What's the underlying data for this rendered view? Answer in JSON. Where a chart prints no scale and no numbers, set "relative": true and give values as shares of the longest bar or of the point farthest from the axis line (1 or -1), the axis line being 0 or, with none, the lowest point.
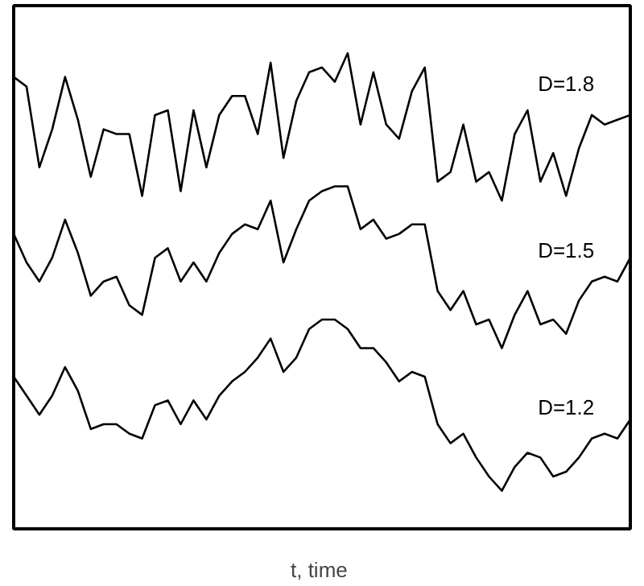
{
  "chart_data": {
    "type": "line",
    "xlabel": "t,  time",
    "relative": true,
    "categories": [
      null,
      null,
      null,
      null,
      null,
      null,
      null,
      null,
      null,
      null,
      null,
      null,
      null,
      null,
      null,
      null,
      null,
      null,
      null,
      null,
      null,
      null,
      null,
      null,
      null,
      null,
      null,
      null,
      null,
      null,
      null,
      null,
      null,
      null,
      null,
      null,
      null,
      null,
      null,
      null,
      null,
      null,
      null,
      null,
      null,
      null,
      null,
      null,
      null
    ],
    "series": [
      {
        "name": "D=1.8",
        "color": "#000000",
        "values": [
          0.95,
          0.93,
          0.76,
          0.84,
          0.95,
          0.86,
          0.74,
          0.84,
          0.83,
          0.83,
          0.7,
          0.87,
          0.88,
          0.71,
          0.88,
          0.76,
          0.87,
          0.91,
          0.91,
          0.83,
          0.98,
          0.78,
          0.9,
          0.96,
          0.97,
          0.94,
          1.0,
          0.85,
          0.96,
          0.85,
          0.82,
          0.92,
          0.97,
          0.73,
          0.75,
          0.85,
          0.73,
          0.75,
          0.69,
          0.83,
          0.88,
          0.73,
          0.79,
          0.7,
          0.8,
          0.87,
          0.85,
          0.86,
          0.87
        ]
      },
      {
        "name": "D=1.5",
        "color": "#000000",
        "values": [
          0.62,
          0.56,
          0.52,
          0.57,
          0.65,
          0.58,
          0.49,
          0.52,
          0.53,
          0.47,
          0.45,
          0.57,
          0.59,
          0.52,
          0.56,
          0.52,
          0.58,
          0.62,
          0.64,
          0.63,
          0.69,
          0.56,
          0.63,
          0.69,
          0.71,
          0.72,
          0.72,
          0.63,
          0.65,
          0.61,
          0.62,
          0.64,
          0.64,
          0.5,
          0.46,
          0.5,
          0.43,
          0.44,
          0.38,
          0.45,
          0.5,
          0.43,
          0.44,
          0.41,
          0.48,
          0.52,
          0.53,
          0.52,
          0.57
        ]
      },
      {
        "name": "D=1.2",
        "color": "#000000",
        "values": [
          0.32,
          0.28,
          0.24,
          0.28,
          0.34,
          0.29,
          0.21,
          0.22,
          0.22,
          0.2,
          0.19,
          0.26,
          0.27,
          0.22,
          0.27,
          0.23,
          0.28,
          0.31,
          0.33,
          0.36,
          0.4,
          0.33,
          0.36,
          0.42,
          0.44,
          0.44,
          0.42,
          0.38,
          0.38,
          0.35,
          0.31,
          0.33,
          0.32,
          0.22,
          0.18,
          0.2,
          0.15,
          0.11,
          0.08,
          0.13,
          0.16,
          0.15,
          0.11,
          0.12,
          0.15,
          0.19,
          0.2,
          0.19,
          0.23
        ]
      }
    ]
  }
}
